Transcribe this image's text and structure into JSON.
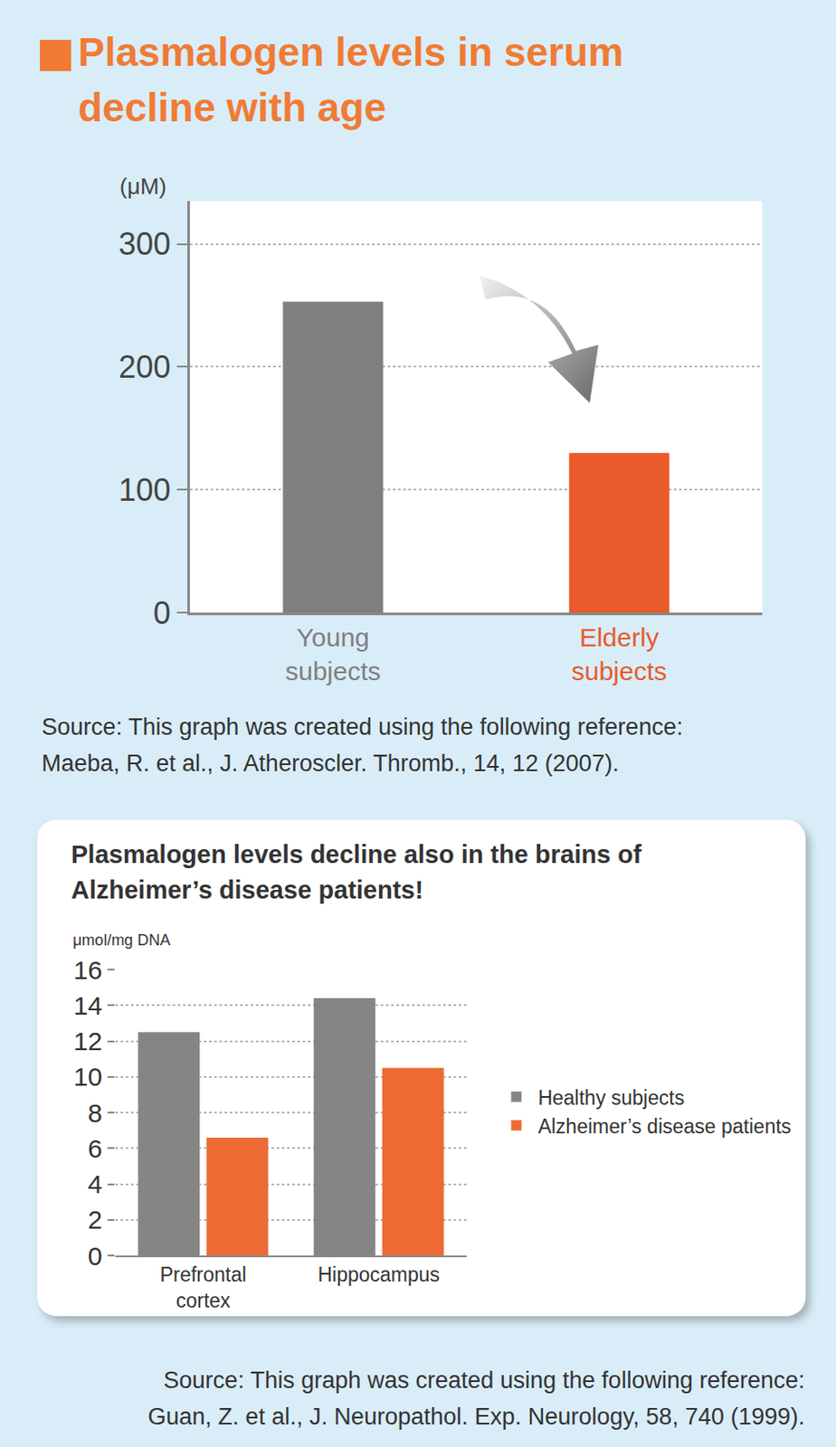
{
  "chart_data": [
    {
      "type": "bar",
      "title": "Plasmalogen levels in serum decline with age",
      "y_label": "(μM)",
      "categories": [
        "Young subjects",
        "Elderly subjects"
      ],
      "values": [
        253,
        130
      ],
      "colors": [
        "#7f7f7f",
        "#ea5a2a"
      ],
      "ylim": [
        0,
        335
      ],
      "yticks": [
        0,
        100,
        200,
        300
      ],
      "grid": true,
      "source": [
        "Source: This graph was created using the following reference:",
        " Maeba, R. et al., J. Atheroscler. Thromb., 14, 12 (2007)."
      ]
    },
    {
      "type": "bar",
      "title": "Plasmalogen levels decline also in the brains of Alzheimer’s disease patients!",
      "y_label": "μmol/mg DNA",
      "categories": [
        "Prefrontal cortex",
        "Hippocampus"
      ],
      "series": [
        {
          "name": "Healthy subjects",
          "color": "#858585",
          "values": [
            12.5,
            14.4
          ]
        },
        {
          "name": "Alzheimer’s disease patients",
          "color": "#ee6a35",
          "values": [
            6.6,
            10.5
          ]
        }
      ],
      "ylim": [
        0,
        16
      ],
      "yticks": [
        0,
        2,
        4,
        6,
        8,
        10,
        12,
        14,
        16
      ],
      "grid": true,
      "legend": "right",
      "source": [
        "Source: This graph was created using the following reference:",
        " Guan, Z. et al., J. Neuropathol. Exp. Neurology, 58, 740 (1999)."
      ]
    }
  ]
}
